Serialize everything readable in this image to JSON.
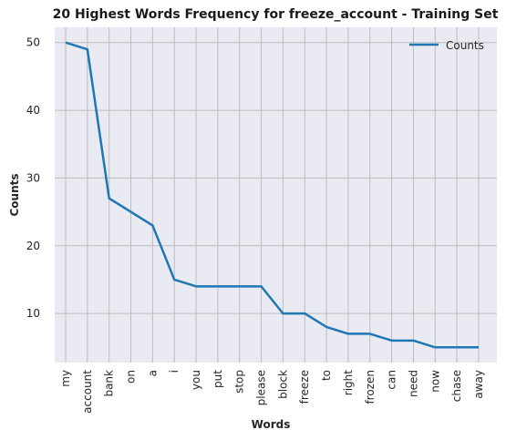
{
  "chart_data": {
    "type": "line",
    "title": "20 Highest Words Frequency for freeze_account - Training Set",
    "xlabel": "Words",
    "ylabel": "Counts",
    "categories": [
      "my",
      "account",
      "bank",
      "on",
      "a",
      "i",
      "you",
      "put",
      "stop",
      "please",
      "block",
      "freeze",
      "to",
      "right",
      "frozen",
      "can",
      "need",
      "now",
      "chase",
      "away"
    ],
    "series": [
      {
        "name": "Counts",
        "values": [
          50,
          49,
          27,
          25,
          23,
          15,
          14,
          14,
          14,
          14,
          10,
          10,
          8,
          7,
          7,
          6,
          6,
          5,
          5,
          5
        ]
      }
    ],
    "yticks": [
      10,
      20,
      30,
      40,
      50
    ],
    "ylim": [
      2.75,
      52.25
    ],
    "grid": true,
    "legend_position": "top-right",
    "colors": {
      "line": "#1f77b4",
      "plot_bg": "#eaeaf2",
      "grid": "#bdbdbd"
    }
  }
}
